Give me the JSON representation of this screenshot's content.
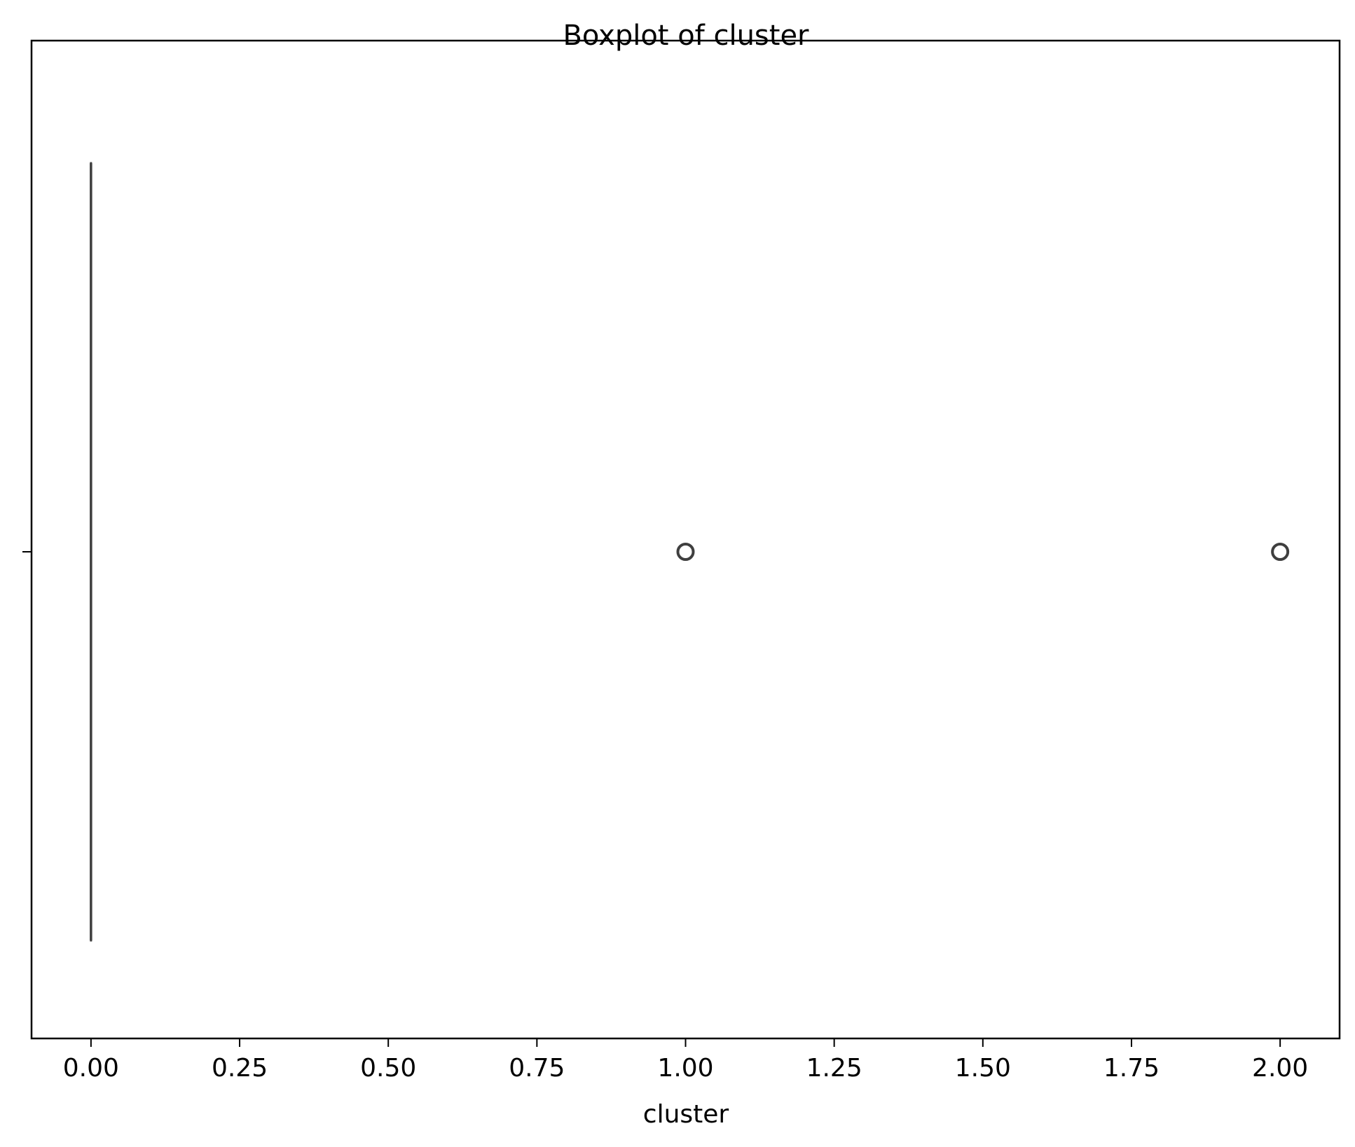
{
  "chart_data": {
    "type": "boxplot",
    "orientation": "horizontal",
    "title": "Boxplot of cluster",
    "xlabel": "cluster",
    "ylabel": "",
    "xlim": [
      -0.1,
      2.1
    ],
    "xticks": [
      0.0,
      0.25,
      0.5,
      0.75,
      1.0,
      1.25,
      1.5,
      1.75,
      2.0
    ],
    "xtick_labels": [
      "0.00",
      "0.25",
      "0.50",
      "0.75",
      "1.00",
      "1.25",
      "1.50",
      "1.75",
      "2.00"
    ],
    "grid": false,
    "box": {
      "q1": 0.0,
      "median": 0.0,
      "q3": 0.0,
      "whisker_low": 0.0,
      "whisker_high": 0.0
    },
    "outliers": [
      1.0,
      2.0
    ],
    "colors": {
      "box_line": "#3f3f3f",
      "outlier_edge": "#3f3f3f",
      "axes": "#000000"
    }
  }
}
